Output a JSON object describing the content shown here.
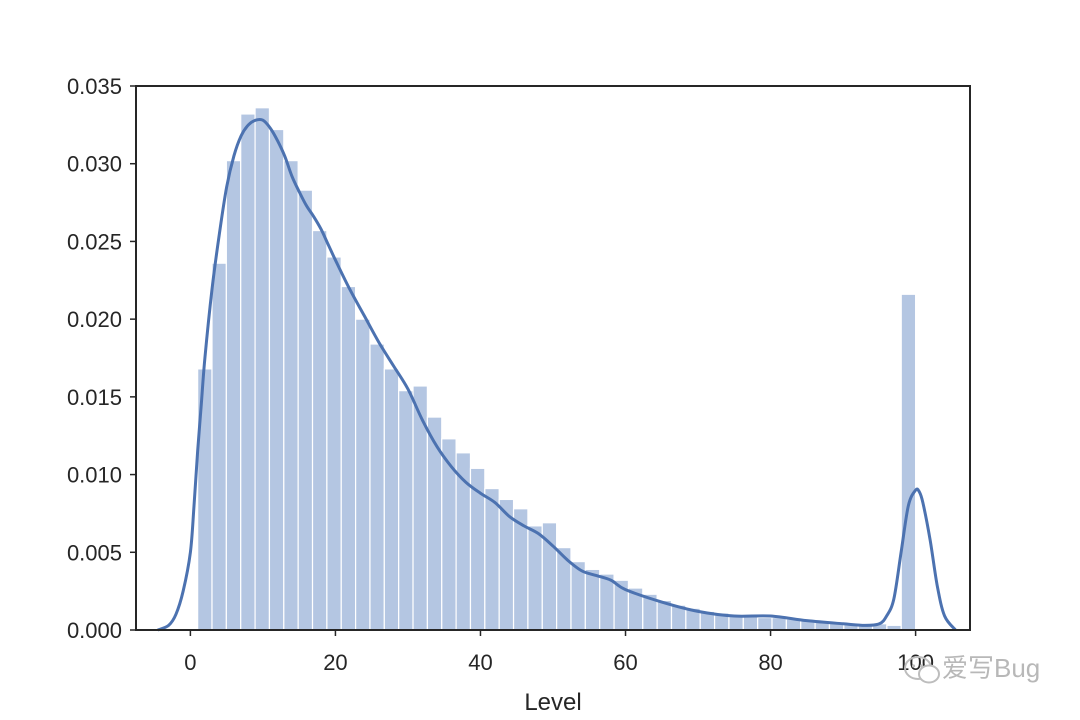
{
  "chart_data": {
    "type": "bar",
    "title": "",
    "xlabel": "Level",
    "ylabel": "",
    "xlim": [
      -7.5,
      107.5
    ],
    "ylim": [
      0,
      0.035
    ],
    "xticks": [
      0,
      20,
      40,
      60,
      80,
      100
    ],
    "xtick_labels": [
      "0",
      "20",
      "40",
      "60",
      "80",
      "100"
    ],
    "yticks": [
      0,
      0.005,
      0.01,
      0.015,
      0.02,
      0.025,
      0.03,
      0.035
    ],
    "ytick_labels": [
      "0.000",
      "0.005",
      "0.010",
      "0.015",
      "0.020",
      "0.025",
      "0.030",
      "0.035"
    ],
    "grid": false,
    "bar_color": "#b4c6e2",
    "line_color": "#4c72b0",
    "histogram": {
      "bin_edges": [
        1.0,
        2.98,
        4.96,
        6.94,
        8.92,
        10.9,
        12.88,
        14.86,
        16.84,
        18.82,
        20.8,
        22.78,
        24.76,
        26.74,
        28.72,
        30.7,
        32.68,
        34.66,
        36.64,
        38.62,
        40.6,
        42.58,
        44.56,
        46.54,
        48.52,
        50.5,
        52.48,
        54.46,
        56.44,
        58.42,
        60.4,
        62.38,
        64.36,
        66.34,
        68.32,
        70.3,
        72.28,
        74.26,
        76.24,
        78.22,
        80.2,
        82.18,
        84.16,
        86.14,
        88.12,
        90.1,
        92.08,
        94.06,
        96.04,
        98.02,
        100.0
      ],
      "density": [
        0.0168,
        0.0236,
        0.0302,
        0.0332,
        0.0336,
        0.0322,
        0.0302,
        0.0283,
        0.0257,
        0.024,
        0.0221,
        0.02,
        0.0184,
        0.0168,
        0.0154,
        0.0157,
        0.0137,
        0.0123,
        0.0114,
        0.0104,
        0.0091,
        0.0084,
        0.0078,
        0.0067,
        0.0069,
        0.0053,
        0.0044,
        0.0039,
        0.0036,
        0.0032,
        0.0027,
        0.0023,
        0.0019,
        0.0016,
        0.0014,
        0.0012,
        0.0011,
        0.0009,
        0.0009,
        0.0008,
        0.0008,
        0.0007,
        0.0006,
        0.0005,
        0.0005,
        0.0004,
        0.0004,
        0.0004,
        0.0003,
        0.0216
      ]
    },
    "kde": {
      "x": [
        -4.5,
        -3,
        -2,
        -1,
        0,
        0.5,
        1,
        1.5,
        2,
        3,
        4,
        5,
        6,
        7,
        8,
        9,
        10,
        11,
        12,
        13,
        14,
        15,
        16,
        17,
        18,
        19,
        20,
        22,
        24,
        26,
        28,
        30,
        32,
        34,
        36,
        38,
        40,
        42,
        44,
        46,
        48,
        50,
        52,
        54,
        56,
        58,
        60,
        65,
        70,
        75,
        80,
        85,
        90,
        93,
        95,
        96,
        97,
        98,
        99,
        100,
        100.5,
        101,
        102,
        103,
        104,
        105.5
      ],
      "y": [
        0.0,
        0.0003,
        0.001,
        0.0025,
        0.005,
        0.008,
        0.0115,
        0.0145,
        0.0175,
        0.022,
        0.0255,
        0.0285,
        0.0305,
        0.0318,
        0.0325,
        0.0328,
        0.0328,
        0.0323,
        0.0315,
        0.0305,
        0.0292,
        0.0282,
        0.0273,
        0.0266,
        0.0258,
        0.0248,
        0.0238,
        0.0219,
        0.0202,
        0.0185,
        0.017,
        0.0155,
        0.0135,
        0.0118,
        0.0105,
        0.0095,
        0.0088,
        0.0082,
        0.0073,
        0.0067,
        0.0062,
        0.0054,
        0.0045,
        0.0038,
        0.0035,
        0.0032,
        0.0026,
        0.0018,
        0.0012,
        0.0009,
        0.0009,
        0.0006,
        0.0004,
        0.0003,
        0.0004,
        0.0009,
        0.002,
        0.005,
        0.008,
        0.009,
        0.0089,
        0.0082,
        0.0058,
        0.0028,
        0.0009,
        0.0
      ]
    }
  },
  "watermark": {
    "text": "爱写Bug",
    "icon": "wechat-icon"
  }
}
